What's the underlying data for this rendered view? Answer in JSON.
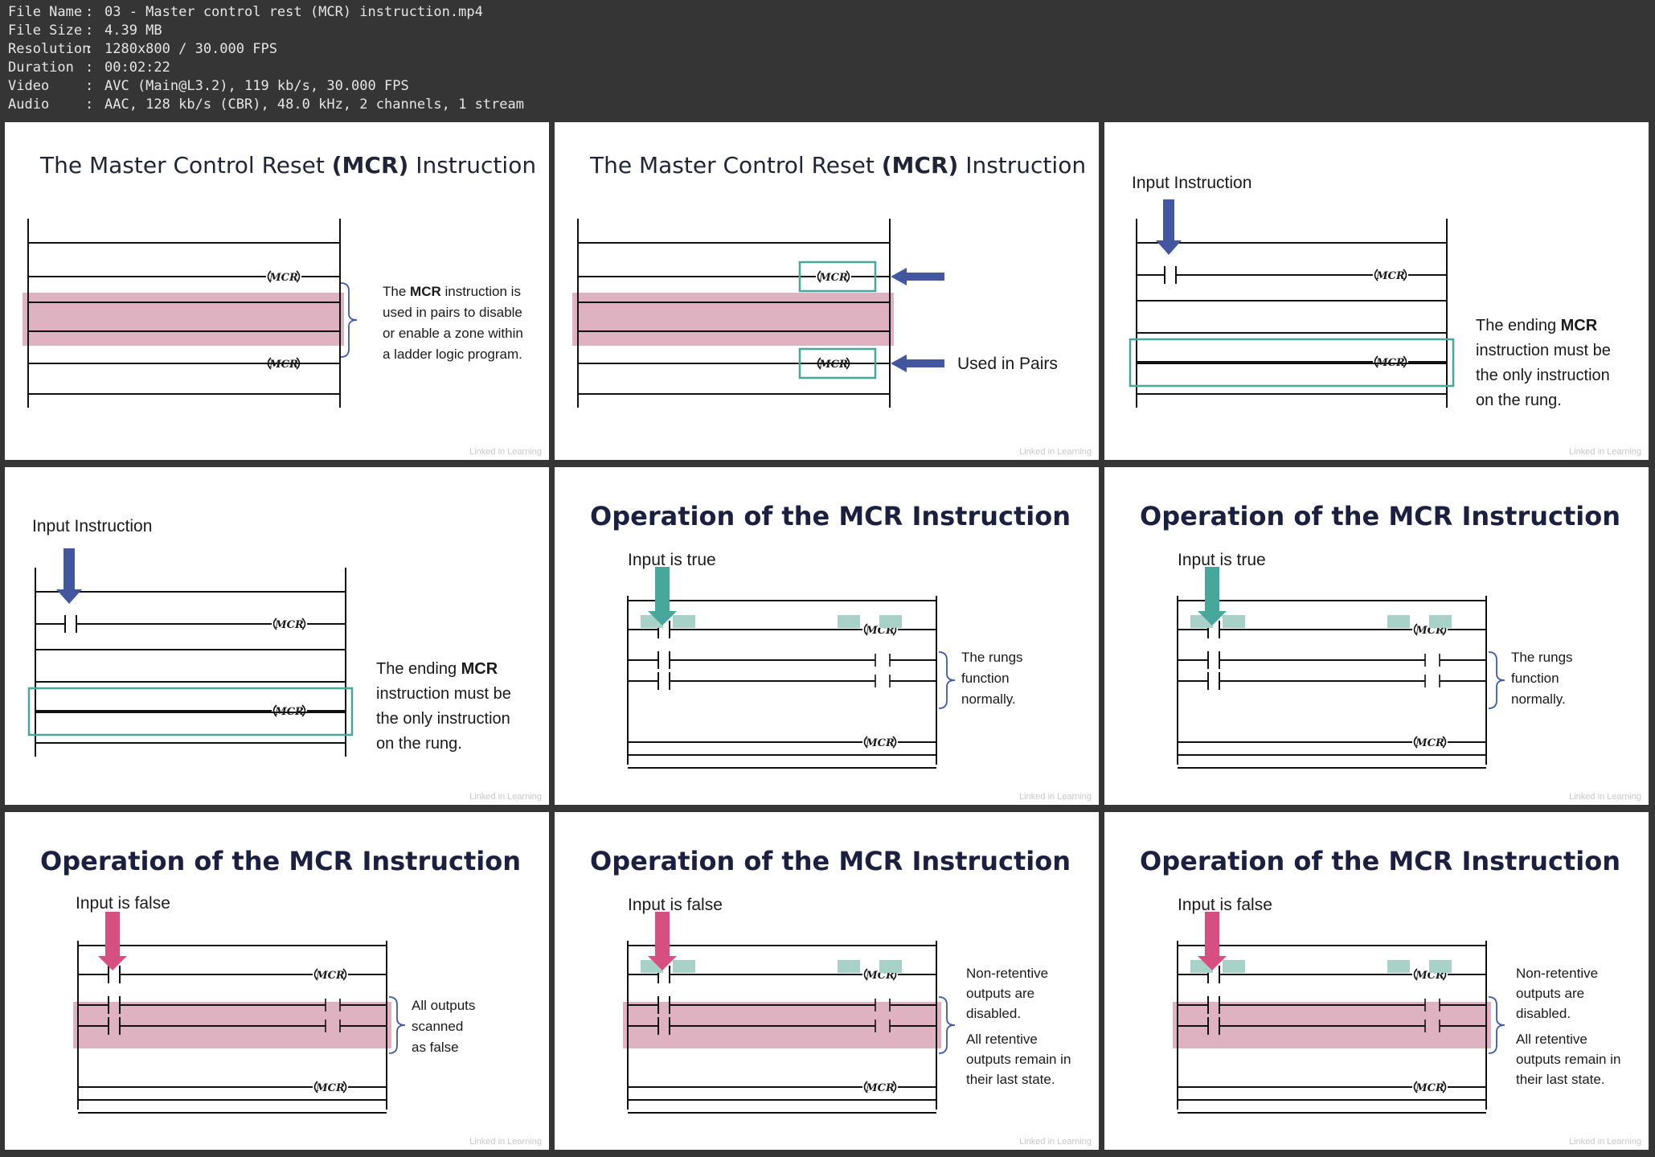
{
  "file_info": [
    {
      "key": "File Name",
      "value": "03 - Master control rest (MCR) instruction.mp4"
    },
    {
      "key": "File Size",
      "value": "4.39 MB"
    },
    {
      "key": "Resolution",
      "value": "1280x800 / 30.000 FPS"
    },
    {
      "key": "Duration",
      "value": "00:02:22"
    },
    {
      "key": "Video",
      "value": "AVC (Main@L3.2), 119 kb/s, 30.000 FPS"
    },
    {
      "key": "Audio",
      "value": "AAC, 128 kb/s (CBR), 48.0 kHz, 2 channels, 1 stream"
    }
  ],
  "separator": ":",
  "colors": {
    "zone_pink": "#dfb2c2",
    "teal": "#47a79a",
    "teal_light": "#a8d1c8",
    "blue_arrow": "#4257a0",
    "pink_arrow": "#d64f80"
  },
  "watermark": "Linked in Learning",
  "coil_label": "MCR",
  "frames": [
    {
      "title_pre": "The Master Control Reset ",
      "title_bold": "(MCR)",
      "title_post": " Instruction",
      "note_lines": [
        [
          "The ",
          "MCR",
          " instruction is"
        ],
        [
          "used in pairs to disable"
        ],
        [
          "or enable a zone within"
        ],
        [
          "a ladder logic program."
        ]
      ]
    },
    {
      "title_pre": "The Master Control Reset ",
      "title_bold": "(MCR)",
      "title_post": " Instruction",
      "label": "Used in Pairs"
    },
    {
      "label": "Input Instruction",
      "note_lines": [
        [
          "The ending ",
          "MCR"
        ],
        [
          "instruction must be"
        ],
        [
          "the only instruction"
        ],
        [
          "on the rung."
        ]
      ]
    },
    {
      "label": "Input Instruction",
      "note_lines": [
        [
          "The ending ",
          "MCR"
        ],
        [
          "instruction must be"
        ],
        [
          "the only instruction"
        ],
        [
          "on the rung."
        ]
      ]
    },
    {
      "title": "Operation of the MCR Instruction",
      "label": "Input is true",
      "note_lines": [
        "The rungs",
        "function",
        "normally."
      ]
    },
    {
      "title": "Operation of the MCR Instruction",
      "label": "Input is true",
      "note_lines": [
        "The rungs",
        "function",
        "normally."
      ]
    },
    {
      "title": "Operation of the MCR Instruction",
      "label": "Input is false",
      "note_lines": [
        "All outputs",
        "scanned",
        "as false"
      ]
    },
    {
      "title": "Operation of the MCR Instruction",
      "label": "Input is false",
      "note_lines": [
        "Non-retentive",
        "outputs are",
        "disabled.",
        "All retentive",
        "outputs remain in",
        "their last state."
      ]
    },
    {
      "title": "Operation of the MCR Instruction",
      "label": "Input is false",
      "note_lines": [
        "Non-retentive",
        "outputs are",
        "disabled.",
        "All retentive",
        "outputs remain in",
        "their last state."
      ]
    }
  ]
}
